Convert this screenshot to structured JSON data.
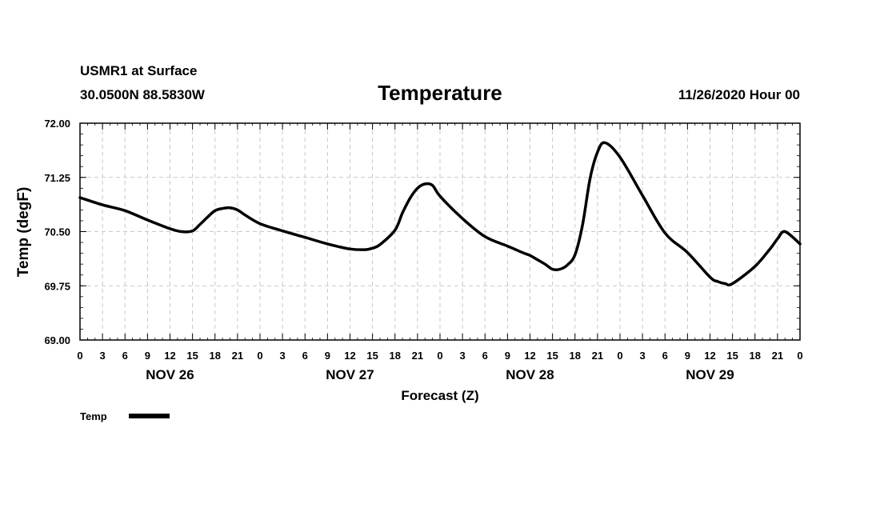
{
  "chart_data": {
    "type": "line",
    "station": "USMR1 at Surface",
    "location": "30.0500N 88.5830W",
    "title": "Temperature",
    "run_time": "11/26/2020 Hour 00",
    "xlabel": "Forecast (Z)",
    "ylabel": "Temp (degF)",
    "ylim": [
      69.0,
      72.0
    ],
    "xlim": [
      0,
      96
    ],
    "y_ticks": [
      69.0,
      69.75,
      70.5,
      71.25,
      72.0
    ],
    "y_tick_labels": [
      "69.00",
      "69.75",
      "70.50",
      "71.25",
      "72.00"
    ],
    "x_tick_hours": [
      0,
      3,
      6,
      9,
      12,
      15,
      18,
      21,
      24,
      27,
      30,
      33,
      36,
      39,
      42,
      45,
      48,
      51,
      54,
      57,
      60,
      63,
      66,
      69,
      72,
      75,
      78,
      81,
      84,
      87,
      90,
      93,
      96
    ],
    "x_tick_labels": [
      "0",
      "3",
      "6",
      "9",
      "12",
      "15",
      "18",
      "21",
      "0",
      "3",
      "6",
      "9",
      "12",
      "15",
      "18",
      "21",
      "0",
      "3",
      "6",
      "9",
      "12",
      "15",
      "18",
      "21",
      "0",
      "3",
      "6",
      "9",
      "12",
      "15",
      "18",
      "21",
      "0"
    ],
    "day_labels": [
      {
        "text": "NOV 26",
        "hour": 12
      },
      {
        "text": "NOV 27",
        "hour": 36
      },
      {
        "text": "NOV 28",
        "hour": 60
      },
      {
        "text": "NOV 29",
        "hour": 84
      }
    ],
    "grid": true,
    "legend_position": "bottom-left",
    "series": [
      {
        "name": "Temp",
        "color": "#000000",
        "x": [
          0,
          3,
          6,
          9,
          12,
          13.5,
          15,
          16,
          17,
          18,
          19,
          20,
          21,
          22,
          24,
          27,
          30,
          33,
          36,
          38,
          39,
          40,
          42,
          43,
          44,
          45,
          46,
          47,
          48,
          51,
          54,
          57,
          59,
          60,
          61,
          62,
          63,
          64,
          65,
          66,
          67,
          68,
          69,
          70,
          72,
          75,
          78,
          81,
          84,
          85,
          86,
          87,
          90,
          92,
          93,
          94,
          96
        ],
        "values": [
          70.97,
          70.87,
          70.79,
          70.66,
          70.54,
          70.5,
          70.51,
          70.6,
          70.7,
          70.79,
          70.82,
          70.83,
          70.8,
          70.73,
          70.61,
          70.51,
          70.42,
          70.33,
          70.26,
          70.25,
          70.27,
          70.32,
          70.52,
          70.76,
          70.96,
          71.1,
          71.16,
          71.14,
          70.99,
          70.68,
          70.43,
          70.3,
          70.21,
          70.17,
          70.11,
          70.05,
          69.98,
          69.98,
          70.04,
          70.18,
          70.59,
          71.23,
          71.6,
          71.73,
          71.53,
          71.0,
          70.48,
          70.21,
          69.87,
          69.81,
          69.78,
          69.78,
          70.02,
          70.26,
          70.4,
          70.5,
          70.33
        ]
      }
    ]
  }
}
